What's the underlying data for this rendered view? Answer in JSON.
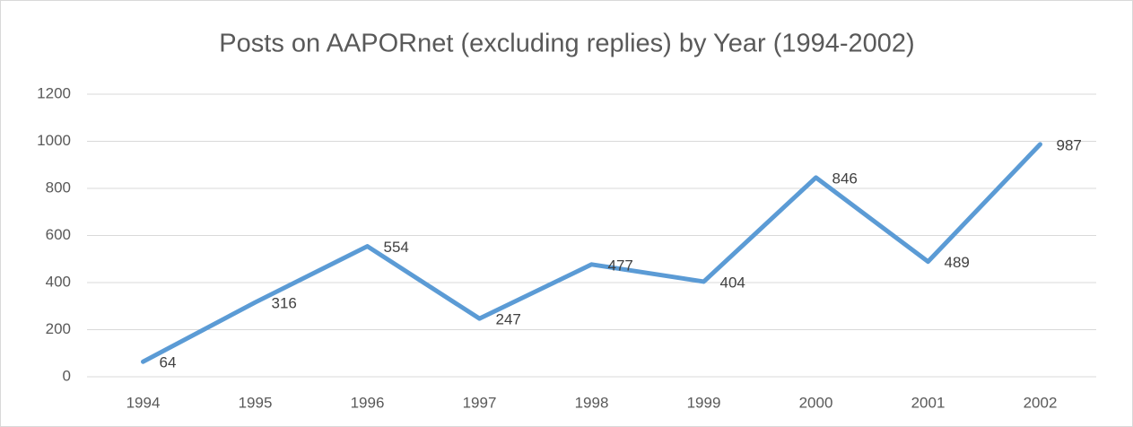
{
  "chart_data": {
    "type": "line",
    "title": "Posts on AAPORnet (excluding replies) by Year (1994-2002)",
    "categories": [
      "1994",
      "1995",
      "1996",
      "1997",
      "1998",
      "1999",
      "2000",
      "2001",
      "2002"
    ],
    "series": [
      {
        "name": "Posts",
        "color": "#5b9bd5",
        "values": [
          64,
          316,
          554,
          247,
          477,
          404,
          846,
          489,
          987
        ]
      }
    ],
    "ylim": [
      0,
      1200
    ],
    "yticks": [
      0,
      200,
      400,
      600,
      800,
      1000,
      1200
    ],
    "grid": true,
    "data_labels": true
  }
}
